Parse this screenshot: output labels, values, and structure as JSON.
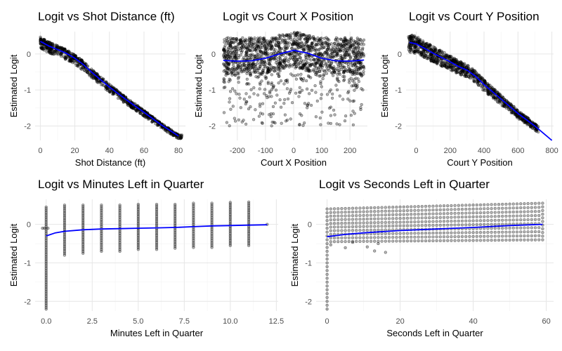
{
  "chart_data": [
    {
      "type": "scatter",
      "title": "Logit vs Shot Distance (ft)",
      "xlabel": "Shot Distance (ft)",
      "ylabel": "Estimated Logit",
      "xlim": [
        -3,
        84
      ],
      "ylim": [
        -2.4,
        0.62
      ],
      "xticks": [
        0,
        20,
        40,
        60,
        80
      ],
      "xtick_labels": [
        "0",
        "20",
        "40",
        "60",
        "80"
      ],
      "yticks": [
        -2,
        -1,
        0
      ],
      "ytick_labels": [
        "-2",
        "-1",
        "0"
      ],
      "grid": true,
      "fit_line_color": "#0000ff",
      "point_color": "#000000",
      "trend": {
        "x": [
          0,
          5,
          10,
          15,
          20,
          25,
          30,
          35,
          40,
          50,
          60,
          70,
          80
        ],
        "y": [
          0.35,
          0.22,
          0.12,
          0.02,
          -0.12,
          -0.3,
          -0.52,
          -0.72,
          -0.92,
          -1.28,
          -1.62,
          -1.97,
          -2.28
        ]
      },
      "cloud": {
        "x_range": [
          0,
          82
        ],
        "spread_upper": 0.12,
        "spread_lower": 0.2
      }
    },
    {
      "type": "scatter",
      "title": "Logit vs Court X Position",
      "xlabel": "Court X Position",
      "ylabel": "Estimated Logit",
      "xlim": [
        -262,
        262
      ],
      "ylim": [
        -2.4,
        0.62
      ],
      "xticks": [
        -200,
        -100,
        0,
        100,
        200
      ],
      "xtick_labels": [
        "-200",
        "-100",
        "0",
        "100",
        "200"
      ],
      "yticks": [
        -2,
        -1,
        0
      ],
      "ytick_labels": [
        "-2",
        "-1",
        "0"
      ],
      "grid": true,
      "fit_line_color": "#0000ff",
      "point_color": "#000000",
      "trend": {
        "x": [
          -250,
          -200,
          -150,
          -100,
          -50,
          0,
          50,
          100,
          150,
          200,
          250
        ],
        "y": [
          -0.18,
          -0.2,
          -0.19,
          -0.12,
          0.0,
          0.1,
          0.02,
          -0.12,
          -0.19,
          -0.2,
          -0.17
        ]
      },
      "cloud": {
        "x_range": [
          -250,
          250
        ],
        "band_top": 0.45,
        "band_bottom": -0.55,
        "scatter_min": -2.0
      }
    },
    {
      "type": "scatter",
      "title": "Logit vs Court Y Position",
      "xlabel": "Court Y Position",
      "ylabel": "Estimated Logit",
      "xlim": [
        -60,
        810
      ],
      "ylim": [
        -2.4,
        0.62
      ],
      "xticks": [
        0,
        200,
        400,
        600,
        800
      ],
      "xtick_labels": [
        "0",
        "200",
        "400",
        "600",
        "800"
      ],
      "yticks": [
        -2,
        -1,
        0
      ],
      "ytick_labels": [
        "-2",
        "-1",
        "0"
      ],
      "grid": true,
      "fit_line_color": "#0000ff",
      "point_color": "#000000",
      "trend": {
        "x": [
          -40,
          0,
          50,
          100,
          150,
          200,
          250,
          300,
          350,
          400,
          500,
          600,
          700,
          800
        ],
        "y": [
          0.32,
          0.28,
          0.15,
          0.02,
          -0.1,
          -0.22,
          -0.35,
          -0.45,
          -0.62,
          -0.85,
          -1.25,
          -1.65,
          -2.0,
          -2.4
        ]
      },
      "cloud": {
        "x_range": [
          -45,
          720
        ],
        "spread_upper": 0.22,
        "spread_lower": 0.28
      }
    },
    {
      "type": "scatter",
      "title": "Logit vs Minutes Left in Quarter",
      "xlabel": "Minutes Left in Quarter",
      "ylabel": "Estimated Logit",
      "xlim": [
        -0.6,
        12.6
      ],
      "ylim": [
        -2.25,
        0.65
      ],
      "xticks": [
        0,
        2.5,
        5,
        7.5,
        10,
        12.5
      ],
      "xtick_labels": [
        "0.0",
        "2.5",
        "5.0",
        "7.5",
        "10.0",
        "12.5"
      ],
      "yticks": [
        -2,
        -1,
        0
      ],
      "ytick_labels": [
        "-2",
        "-1",
        "0"
      ],
      "grid": true,
      "fit_line_color": "#0000ff",
      "point_color": "#000000",
      "trend": {
        "x": [
          0,
          0.5,
          1,
          2,
          3,
          4,
          5,
          6,
          7,
          8,
          9,
          10,
          11,
          12
        ],
        "y": [
          -0.3,
          -0.22,
          -0.18,
          -0.14,
          -0.12,
          -0.11,
          -0.1,
          -0.09,
          -0.08,
          -0.06,
          -0.04,
          -0.03,
          -0.02,
          -0.01
        ]
      },
      "columns": {
        "x": [
          0,
          1,
          2,
          3,
          4,
          5,
          6,
          7,
          8,
          9,
          10,
          11
        ],
        "top": [
          0.45,
          0.5,
          0.5,
          0.5,
          0.5,
          0.52,
          0.52,
          0.52,
          0.55,
          0.55,
          0.57,
          0.58
        ],
        "bottom": [
          -2.2,
          -0.8,
          -0.75,
          -0.7,
          -0.7,
          -0.65,
          -0.65,
          -0.62,
          -0.6,
          -0.6,
          -0.55,
          -0.55
        ]
      }
    },
    {
      "type": "scatter",
      "title": "Logit vs Seconds Left in Quarter",
      "xlabel": "Seconds Left in Quarter",
      "ylabel": "Estimated Logit",
      "xlim": [
        -3,
        62
      ],
      "ylim": [
        -2.25,
        0.65
      ],
      "xticks": [
        0,
        20,
        40,
        60
      ],
      "xtick_labels": [
        "0",
        "20",
        "40",
        "60"
      ],
      "yticks": [
        -2,
        -1,
        0
      ],
      "ytick_labels": [
        "-2",
        "-1",
        "0"
      ],
      "grid": true,
      "fit_line_color": "#0000ff",
      "point_color": "#000000",
      "trend": {
        "x": [
          0,
          5,
          10,
          20,
          30,
          40,
          50,
          59
        ],
        "y": [
          -0.32,
          -0.26,
          -0.22,
          -0.16,
          -0.12,
          -0.08,
          -0.03,
          0.0
        ]
      },
      "columns": {
        "x_range": [
          0,
          59
        ],
        "top_start": 0.4,
        "top_end": 0.55,
        "bottom_start": -0.45,
        "bottom_end": -0.4,
        "first_bottom": -2.2
      }
    }
  ]
}
